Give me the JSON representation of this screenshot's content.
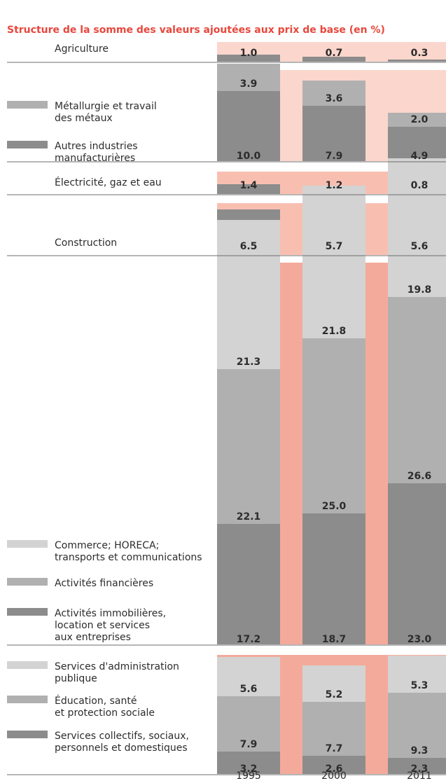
{
  "chart_data": {
    "type": "bar",
    "stacked": true,
    "title": "Structure de la somme des valeurs ajoutées aux prix de base (en %)",
    "categories": [
      "1995",
      "2000",
      "2011"
    ],
    "colors": {
      "title": "#e8473c",
      "band_light": "#fbd6cc",
      "band_medium": "#f8bfb1",
      "band_strong": "#f4aa9a",
      "dark": "#8c8c8c",
      "medium": "#b0b0b0",
      "light": "#d3d3d3",
      "rule": "#6e6e6e"
    },
    "groups": [
      {
        "band": "band_light",
        "series": [
          {
            "name": "Agriculture",
            "color": "dark",
            "legend_swatch": false,
            "values": [
              1.0,
              0.7,
              0.3
            ]
          }
        ]
      },
      {
        "band": "band_light",
        "series": [
          {
            "name": "Autres industries manufacturières",
            "label_lines": [
              "Autres industries",
              "manufacturières"
            ],
            "color": "dark",
            "legend_swatch": true,
            "values": [
              10.0,
              7.9,
              4.9
            ]
          },
          {
            "name": "Métallurgie et travail des métaux",
            "label_lines": [
              "Métallurgie et travail",
              "des métaux"
            ],
            "color": "medium",
            "legend_swatch": true,
            "values": [
              3.9,
              3.6,
              2.0
            ]
          }
        ]
      },
      {
        "band": "band_medium",
        "series": [
          {
            "name": "Électricité, gaz et eau",
            "color": "dark",
            "legend_swatch": false,
            "values": [
              1.4,
              1.2,
              0.8
            ]
          }
        ]
      },
      {
        "band": "band_medium",
        "series": [
          {
            "name": "Construction",
            "color": "dark",
            "legend_swatch": false,
            "values": [
              6.5,
              5.7,
              5.6
            ]
          }
        ]
      },
      {
        "band": "band_strong",
        "series": [
          {
            "name": "Activités immobilières, location et services aux entreprises",
            "label_lines": [
              "Activités immobilières,",
              "location et services",
              "aux entreprises"
            ],
            "color": "dark",
            "legend_swatch": true,
            "values": [
              17.2,
              18.7,
              23.0
            ]
          },
          {
            "name": "Activités financières",
            "label_lines": [
              "Activités financières"
            ],
            "color": "medium",
            "legend_swatch": true,
            "values": [
              22.1,
              25.0,
              26.6
            ]
          },
          {
            "name": "Commerce; HORECA; transports et communications",
            "label_lines": [
              "Commerce; HORECA;",
              "transports et communications"
            ],
            "color": "light",
            "legend_swatch": true,
            "values": [
              21.3,
              21.8,
              19.8
            ]
          }
        ]
      },
      {
        "band": "band_strong",
        "series": [
          {
            "name": "Services collectifs, sociaux, personnels et domestiques",
            "label_lines": [
              "Services collectifs, sociaux,",
              "personnels et domestiques"
            ],
            "color": "dark",
            "legend_swatch": true,
            "values": [
              3.2,
              2.6,
              2.3
            ]
          },
          {
            "name": "Éducation, santé et protection sociale",
            "label_lines": [
              "Éducation, santé",
              "et protection sociale"
            ],
            "color": "medium",
            "legend_swatch": true,
            "values": [
              7.9,
              7.7,
              9.3
            ]
          },
          {
            "name": "Services d'administration publique",
            "label_lines": [
              "Services d'administration",
              "publique"
            ],
            "color": "light",
            "legend_swatch": true,
            "values": [
              5.6,
              5.2,
              5.3
            ]
          }
        ]
      }
    ]
  }
}
